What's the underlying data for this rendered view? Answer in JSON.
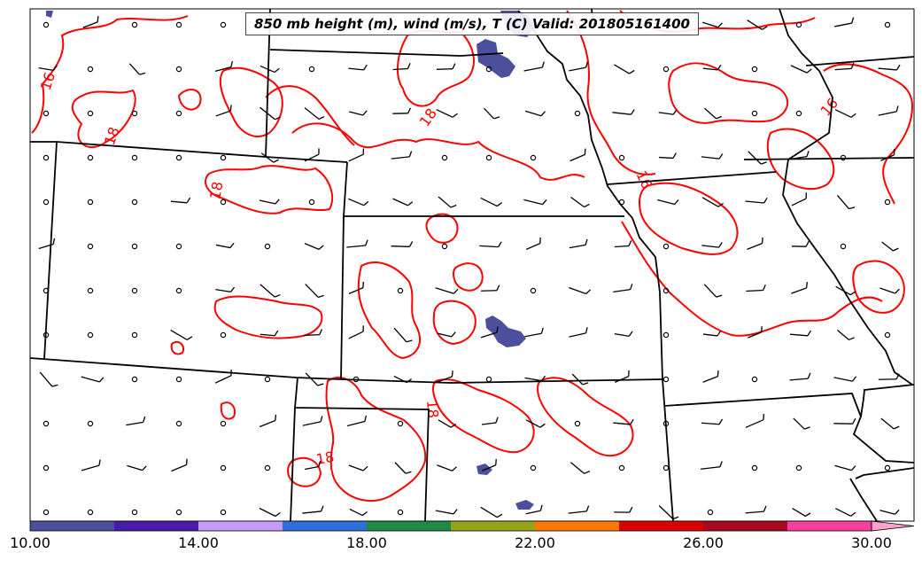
{
  "title": "850 mb height (m), wind (m/s), T (C) Valid: 201805161400",
  "contour_labels": [
    "16",
    "18",
    "18",
    "18",
    "16",
    "16",
    "18",
    "18"
  ],
  "colorbar": {
    "tick_labels": [
      "10.00",
      "14.00",
      "18.00",
      "22.00",
      "26.00",
      "30.00"
    ],
    "colors": [
      "#4b4f9c",
      "#4a1aa8",
      "#c79cf6",
      "#2f6fdc",
      "#1f8a45",
      "#96a41a",
      "#ff7a00",
      "#d80000",
      "#a80a22",
      "#f5409e",
      "#ffa0ce"
    ]
  },
  "colors": {
    "contour": "#ff0000",
    "state_border": "#000000",
    "shaded_region": "#4b4f9c"
  }
}
